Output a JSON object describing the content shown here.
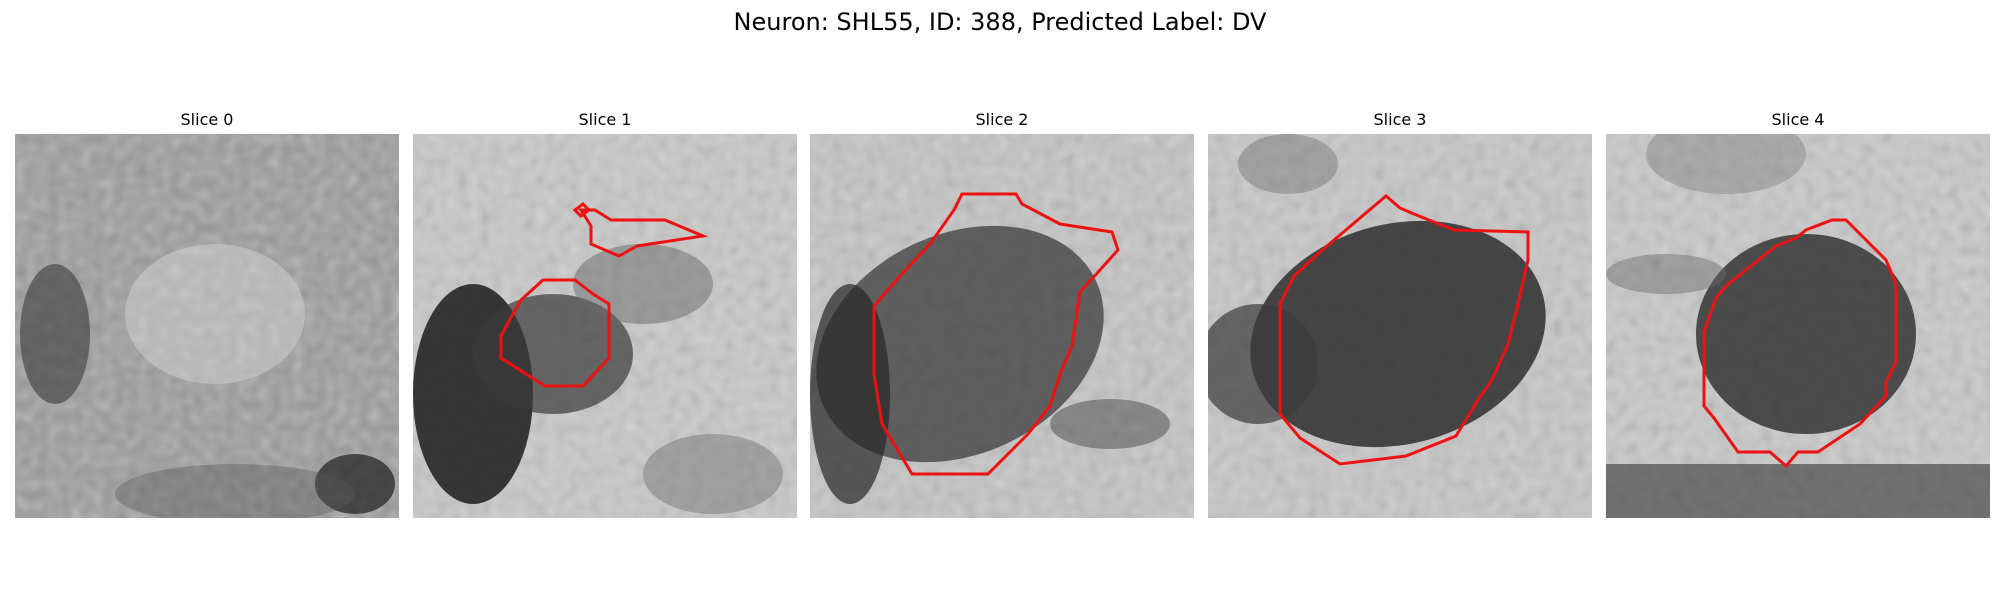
{
  "figure": {
    "title": "Neuron: SHL55, ID: 388, Predicted Label: DV",
    "contour_color": "#ee1111",
    "panels": [
      {
        "title": "Slice 0",
        "has_contour": false
      },
      {
        "title": "Slice 1",
        "has_contour": true
      },
      {
        "title": "Slice 2",
        "has_contour": true
      },
      {
        "title": "Slice 3",
        "has_contour": true
      },
      {
        "title": "Slice 4",
        "has_contour": true
      }
    ]
  }
}
